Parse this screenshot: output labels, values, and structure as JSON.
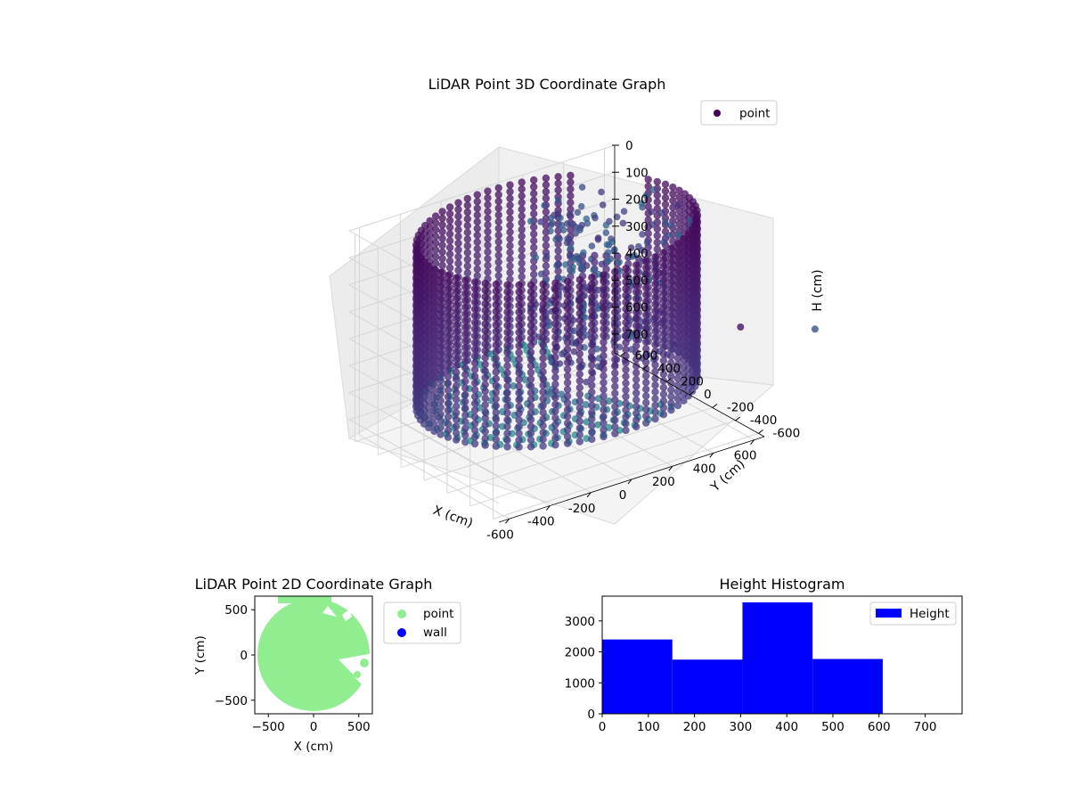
{
  "chart_data": [
    {
      "type": "scatter3d",
      "title": "LiDAR Point 3D Coordinate Graph",
      "xlabel": "X (cm)",
      "ylabel": "Y (cm)",
      "zlabel": "H (cm)",
      "x_ticks": [
        -600,
        -400,
        -200,
        0,
        200,
        400,
        600
      ],
      "y_ticks": [
        -600,
        -400,
        -200,
        0,
        200,
        400,
        600
      ],
      "z_ticks": [
        0,
        100,
        200,
        300,
        400,
        500,
        600,
        700
      ],
      "xlim": [
        -650,
        650
      ],
      "ylim": [
        -650,
        650
      ],
      "zlim": [
        0,
        770
      ],
      "z_inverted": true,
      "legend": {
        "entries": [
          "point"
        ],
        "placement": "top-right"
      },
      "description_of_data": "Circular wall of points of radius ~600 cm at heights 0-600 cm plus a floor disc; an open sector towards +X with scattered points",
      "ring_radius": 600,
      "wall_heights": [
        0,
        600
      ],
      "colors": {
        "point": "#440154"
      }
    },
    {
      "type": "scatter",
      "title": "LiDAR Point 2D Coordinate Graph",
      "xlabel": "X (cm)",
      "ylabel": "Y (cm)",
      "x_ticks": [
        -500,
        0,
        500
      ],
      "y_ticks": [
        -500,
        0,
        500
      ],
      "xlim": [
        -650,
        650
      ],
      "ylim": [
        -650,
        650
      ],
      "legend": {
        "entries": [
          "point",
          "wall"
        ],
        "placement": "outside-right"
      },
      "colors": {
        "point": "#90ee90",
        "wall": "#0000ff"
      }
    },
    {
      "type": "bar",
      "title": "Height Histogram",
      "bins": [
        [
          0,
          152
        ],
        [
          152,
          304
        ],
        [
          304,
          456
        ],
        [
          456,
          608
        ]
      ],
      "values": [
        2400,
        1750,
        3600,
        1770
      ],
      "x_ticks": [
        0,
        100,
        200,
        300,
        400,
        500,
        600,
        700
      ],
      "y_ticks": [
        0,
        1000,
        2000,
        3000
      ],
      "xlim": [
        0,
        780
      ],
      "ylim": [
        0,
        3800
      ],
      "legend": {
        "entries": [
          "Height"
        ],
        "placement": "top-right"
      },
      "colors": {
        "bar": "#0000ff"
      }
    }
  ]
}
